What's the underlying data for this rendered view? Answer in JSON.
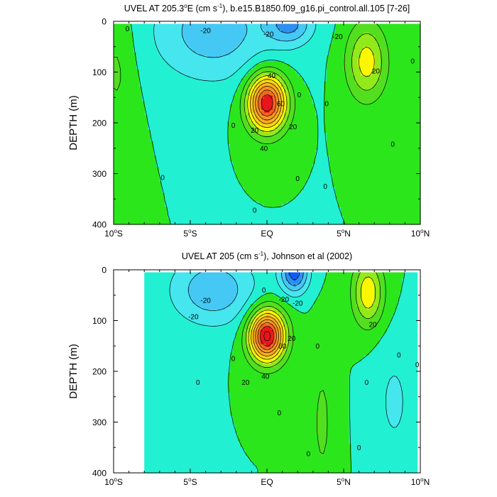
{
  "chart_data": [
    {
      "type": "contour",
      "title": "UVEL AT 205.3°E (cm s-1), b.e15.B1850.f09_g16.pi_control.all.105 [7-26]",
      "title_parts": {
        "pre": "UVEL AT 205.3",
        "sup1": "o",
        "mid": "E (cm s",
        "sup2": "-1",
        "post": "), b.e15.B1850.f09_g16.pi_control.all.105 [7-26]"
      },
      "xlabel": "",
      "ylabel": "DEPTH (m)",
      "xlim": [
        -10,
        10
      ],
      "ylim": [
        0,
        400
      ],
      "y_inverted": true,
      "x_ticks": [
        {
          "v": -10,
          "t": "10",
          "s": "S"
        },
        {
          "v": -5,
          "t": "5",
          "s": "S"
        },
        {
          "v": 0,
          "t": "EQ",
          "s": ""
        },
        {
          "v": 5,
          "t": "5",
          "s": "N"
        },
        {
          "v": 10,
          "t": "10",
          "s": "N"
        }
      ],
      "y_ticks": [
        0,
        100,
        200,
        300,
        400
      ],
      "data_x_range": [
        -10,
        10
      ],
      "data_depth_top": 5,
      "contour_interval": 10,
      "jets": [
        {
          "name": "EUC",
          "x": 0.0,
          "depth": 160,
          "peak": 90,
          "sx": 1.25,
          "sd": 55
        },
        {
          "name": "NECC",
          "x": 6.5,
          "depth": 80,
          "peak": 35,
          "sx": 1.3,
          "sd": 75
        },
        {
          "name": "SEC_north",
          "x": 1.5,
          "depth": 5,
          "peak": -30,
          "sx": 1.5,
          "sd": 40
        },
        {
          "name": "SEC_south",
          "x": -3.5,
          "depth": 20,
          "peak": -26,
          "sx": 4.0,
          "sd": 100
        },
        {
          "name": "SCC_south",
          "x": -9.8,
          "depth": 90,
          "peak": 12,
          "sx": 1.2,
          "sd": 130
        }
      ],
      "contour_labels": [
        {
          "x": -9.1,
          "d": 15,
          "t": "0"
        },
        {
          "x": -4.0,
          "d": 18,
          "t": "-20"
        },
        {
          "x": 0.1,
          "d": 25,
          "t": "-20"
        },
        {
          "x": 4.6,
          "d": 30,
          "t": "-20"
        },
        {
          "x": 0.3,
          "d": 107,
          "t": "40"
        },
        {
          "x": 0.9,
          "d": 162,
          "t": "60"
        },
        {
          "x": -0.8,
          "d": 215,
          "t": "20"
        },
        {
          "x": -0.2,
          "d": 250,
          "t": "40"
        },
        {
          "x": 1.7,
          "d": 208,
          "t": "20"
        },
        {
          "x": 2.1,
          "d": 145,
          "t": "0"
        },
        {
          "x": 3.9,
          "d": 162,
          "t": "0"
        },
        {
          "x": 7.1,
          "d": 98,
          "t": "20"
        },
        {
          "x": 9.5,
          "d": 78,
          "t": "0"
        },
        {
          "x": 8.2,
          "d": 242,
          "t": "0"
        },
        {
          "x": -2.2,
          "d": 205,
          "t": "0"
        },
        {
          "x": 2.0,
          "d": 310,
          "t": "0"
        },
        {
          "x": 3.8,
          "d": 325,
          "t": "0"
        },
        {
          "x": -0.8,
          "d": 372,
          "t": "0"
        },
        {
          "x": -6.8,
          "d": 308,
          "t": "0"
        }
      ]
    },
    {
      "type": "contour",
      "title": "UVEL AT 205 (cm s-1), Johnson et al (2002)",
      "title_parts": {
        "pre": "UVEL AT 205 (cm s",
        "sup1": "",
        "mid": "",
        "sup2": "-1",
        "post": "), Johnson et al (2002)"
      },
      "xlabel": "",
      "ylabel": "DEPTH (m)",
      "xlim": [
        -10,
        10
      ],
      "ylim": [
        0,
        400
      ],
      "y_inverted": true,
      "x_ticks": [
        {
          "v": -10,
          "t": "10",
          "s": "S"
        },
        {
          "v": -5,
          "t": "5",
          "s": "S"
        },
        {
          "v": 0,
          "t": "EQ",
          "s": ""
        },
        {
          "v": 5,
          "t": "5",
          "s": "N"
        },
        {
          "v": 10,
          "t": "10",
          "s": "N"
        }
      ],
      "y_ticks": [
        0,
        100,
        200,
        300,
        400
      ],
      "data_x_range": [
        -8,
        9.8
      ],
      "data_depth_top": 5,
      "contour_interval": 10,
      "jets": [
        {
          "name": "EUC",
          "x": 0.0,
          "depth": 130,
          "peak": 95,
          "sx": 1.15,
          "sd": 50
        },
        {
          "name": "NECC",
          "x": 6.6,
          "depth": 45,
          "peak": 38,
          "sx": 1.0,
          "sd": 65
        },
        {
          "name": "SEC_north",
          "x": 1.8,
          "depth": 5,
          "peak": -45,
          "sx": 0.9,
          "sd": 40
        },
        {
          "name": "SEC_south",
          "x": -3.5,
          "depth": 40,
          "peak": -28,
          "sx": 2.8,
          "sd": 70
        },
        {
          "name": "SSCC",
          "x": 3.6,
          "depth": 300,
          "peak": 12,
          "sx": 0.8,
          "sd": 150
        },
        {
          "name": "NSCC",
          "x": 8.3,
          "depth": 260,
          "peak": -12,
          "sx": 1.3,
          "sd": 120
        }
      ],
      "contour_labels": [
        {
          "x": -4.0,
          "d": 60,
          "t": "-20"
        },
        {
          "x": -4.8,
          "d": 92,
          "t": "-20"
        },
        {
          "x": -0.2,
          "d": 40,
          "t": "0"
        },
        {
          "x": 1.1,
          "d": 58,
          "t": "-20"
        },
        {
          "x": 2.0,
          "d": 66,
          "t": "-20"
        },
        {
          "x": 1.6,
          "d": 135,
          "t": "20"
        },
        {
          "x": 1.0,
          "d": 150,
          "t": "60"
        },
        {
          "x": -0.1,
          "d": 210,
          "t": "40"
        },
        {
          "x": -1.4,
          "d": 222,
          "t": "20"
        },
        {
          "x": 3.3,
          "d": 150,
          "t": "0"
        },
        {
          "x": 6.9,
          "d": 108,
          "t": "20"
        },
        {
          "x": -2.2,
          "d": 175,
          "t": "0"
        },
        {
          "x": -4.5,
          "d": 222,
          "t": "0"
        },
        {
          "x": 0.8,
          "d": 282,
          "t": "0"
        },
        {
          "x": 6.5,
          "d": 222,
          "t": "0"
        },
        {
          "x": 8.6,
          "d": 168,
          "t": "0"
        },
        {
          "x": 9.8,
          "d": 187,
          "t": "0"
        },
        {
          "x": 2.7,
          "d": 362,
          "t": "0"
        },
        {
          "x": 6.0,
          "d": 350,
          "t": "0"
        }
      ]
    }
  ],
  "colors": {
    "levels": [
      {
        "min": -999,
        "max": -40,
        "color": "#0a5cff"
      },
      {
        "min": -40,
        "max": -30,
        "color": "#2d8ff0"
      },
      {
        "min": -30,
        "max": -20,
        "color": "#45c8f4"
      },
      {
        "min": -20,
        "max": -10,
        "color": "#46e6ef"
      },
      {
        "min": -10,
        "max": 0,
        "color": "#22f0d2"
      },
      {
        "min": 0,
        "max": 10,
        "color": "#2ce61c"
      },
      {
        "min": 10,
        "max": 20,
        "color": "#53df1f"
      },
      {
        "min": 20,
        "max": 30,
        "color": "#93ea1a"
      },
      {
        "min": 30,
        "max": 40,
        "color": "#fbf704"
      },
      {
        "min": 40,
        "max": 50,
        "color": "#fbd213"
      },
      {
        "min": 50,
        "max": 60,
        "color": "#fbb121"
      },
      {
        "min": 60,
        "max": 70,
        "color": "#f8951e"
      },
      {
        "min": 70,
        "max": 80,
        "color": "#f26622"
      },
      {
        "min": 80,
        "max": 999,
        "color": "#e8161c"
      }
    ],
    "contour_line": "#000000",
    "frame": "#000000"
  }
}
